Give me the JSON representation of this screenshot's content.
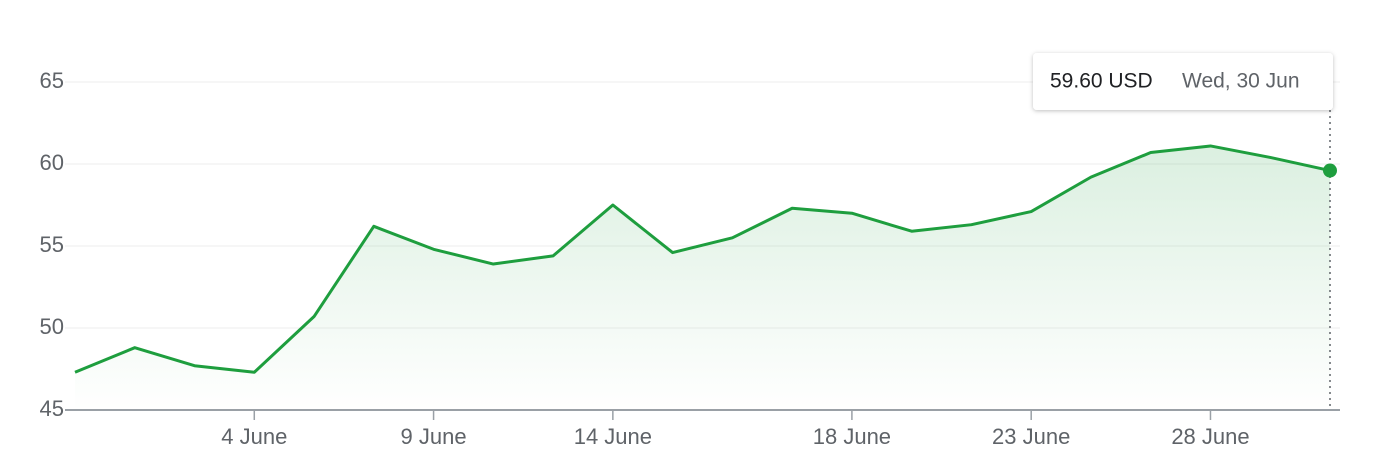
{
  "chart_data": {
    "type": "line",
    "categories": [
      null,
      null,
      null,
      "4 June",
      null,
      null,
      "9 June",
      null,
      null,
      "14 June",
      null,
      null,
      null,
      "18 June",
      null,
      null,
      "23 June",
      null,
      null,
      "28 June",
      null,
      null
    ],
    "values": [
      47.3,
      48.8,
      47.7,
      47.3,
      50.7,
      56.2,
      54.8,
      53.9,
      54.4,
      57.5,
      54.6,
      55.5,
      57.3,
      57.0,
      55.9,
      56.3,
      57.1,
      59.2,
      60.7,
      61.1,
      60.4,
      59.6
    ],
    "color": "#1e9e3e",
    "ylim": [
      45,
      65
    ],
    "yticks": [
      45,
      50,
      55,
      60,
      65
    ],
    "grid": true,
    "tooltip": {
      "value_label": "59.60 USD",
      "date": "Wed, 30 Jun"
    }
  }
}
